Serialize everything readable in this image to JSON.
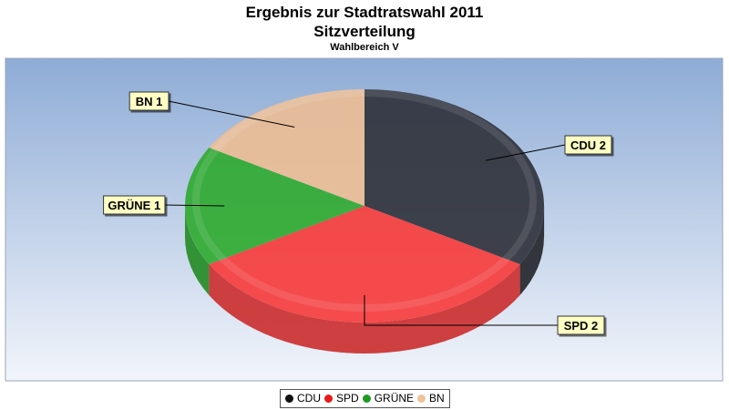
{
  "chart_data": {
    "type": "pie",
    "title": "Ergebnis zur Stadtratswahl 2011",
    "title_line2": "Sitzverteilung",
    "subtitle": "Wahlbereich V",
    "categories": [
      "CDU",
      "SPD",
      "GRÜNE",
      "BN"
    ],
    "values": [
      2,
      2,
      1,
      1
    ],
    "data_labels": [
      "CDU 2",
      "SPD 2",
      "GRÜNE 1",
      "BN 1"
    ],
    "colors": [
      "#2e3038",
      "#f73a3a",
      "#2eaa2e",
      "#ecbd93"
    ],
    "legend_position": "bottom",
    "three_d": true
  },
  "legend": [
    {
      "label": "CDU",
      "color": "#111111"
    },
    {
      "label": "SPD",
      "color": "#e81a1a"
    },
    {
      "label": "GRÜNE",
      "color": "#1e9a1e"
    },
    {
      "label": "BN",
      "color": "#efc49a"
    }
  ]
}
